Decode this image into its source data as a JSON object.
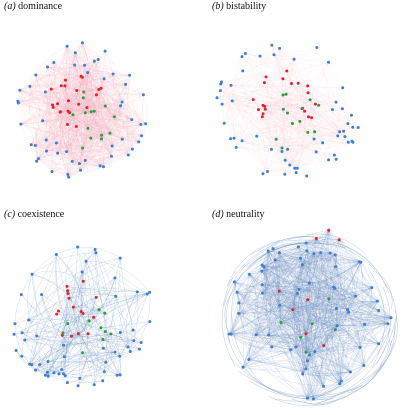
{
  "colors": {
    "blue_node": "#3d7fd0",
    "red_node": "#e3222a",
    "green_node": "#2e9e3d",
    "pink_edge": "#ef9aae",
    "blue_edge": "#6b8fbf"
  },
  "panels": [
    {
      "letter": "(a)",
      "name": "dominance",
      "edge_color": "pink_edge",
      "edge_density": "very dense",
      "edge_opacity": 0.22,
      "node_counts": {
        "blue": 54,
        "red": 22,
        "green": 14
      }
    },
    {
      "letter": "(b)",
      "name": "bistability",
      "edge_color": "pink_edge",
      "edge_density": "moderate",
      "edge_opacity": 0.13,
      "node_counts": {
        "blue": 56,
        "red": 20,
        "green": 13
      }
    },
    {
      "letter": "(c)",
      "name": "coexistence",
      "edge_color": "blue_edge",
      "edge_density": "sparse",
      "edge_opacity": 0.35,
      "node_counts": {
        "blue": 58,
        "red": 16,
        "green": 10
      }
    },
    {
      "letter": "(d)",
      "name": "neutrality",
      "edge_color": "blue_edge",
      "edge_density": "very dense",
      "edge_opacity": 0.3,
      "node_counts": {
        "blue": 66,
        "red": 8,
        "green": 6
      }
    }
  ]
}
